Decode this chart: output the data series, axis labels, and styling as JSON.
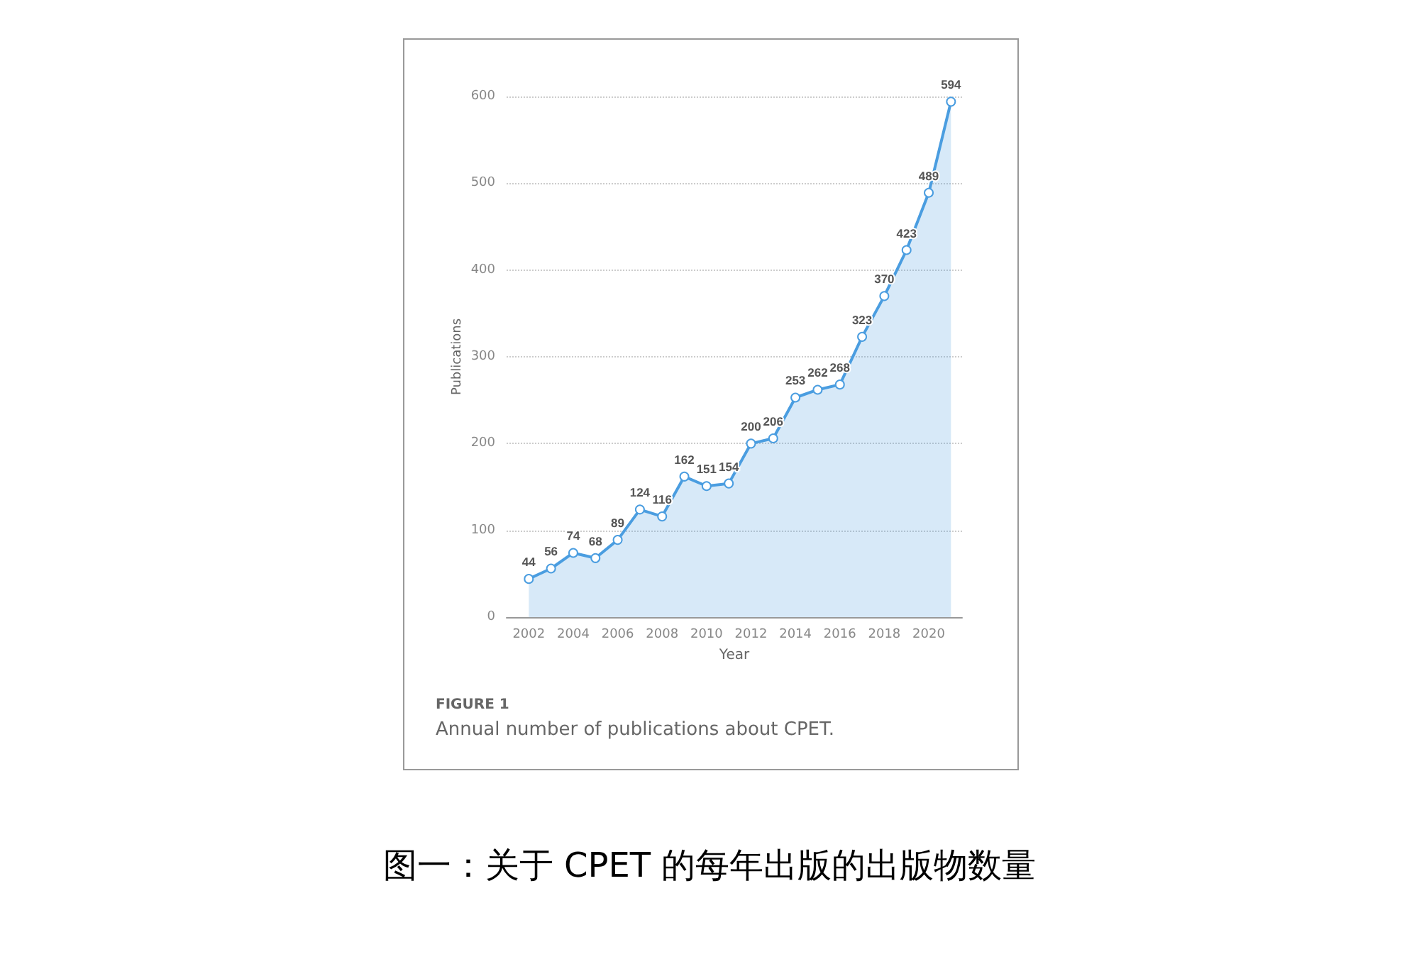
{
  "chart_data": {
    "type": "area",
    "xlabel": "Year",
    "ylabel": "Publications",
    "x": [
      2002,
      2003,
      2004,
      2005,
      2006,
      2007,
      2008,
      2009,
      2010,
      2011,
      2012,
      2013,
      2014,
      2015,
      2016,
      2017,
      2018,
      2019,
      2020,
      2021
    ],
    "values": [
      44,
      56,
      74,
      68,
      89,
      124,
      116,
      162,
      151,
      154,
      200,
      206,
      253,
      262,
      268,
      323,
      370,
      423,
      489,
      594
    ],
    "color": "#4a9de0",
    "xlim": [
      2001,
      2021.5
    ],
    "xticks": [
      2002,
      2004,
      2006,
      2008,
      2010,
      2012,
      2014,
      2016,
      2018,
      2020
    ],
    "ylim": [
      0,
      600
    ],
    "yticks": [
      0,
      100,
      200,
      300,
      400,
      500,
      600
    ],
    "grid": "y",
    "data_labels": true,
    "marker": "circle",
    "annotations": [
      "FIGURE 1",
      "Annual number of publications about CPET.",
      "图一：关于 CPET 的每年出版的出版物数量"
    ]
  }
}
